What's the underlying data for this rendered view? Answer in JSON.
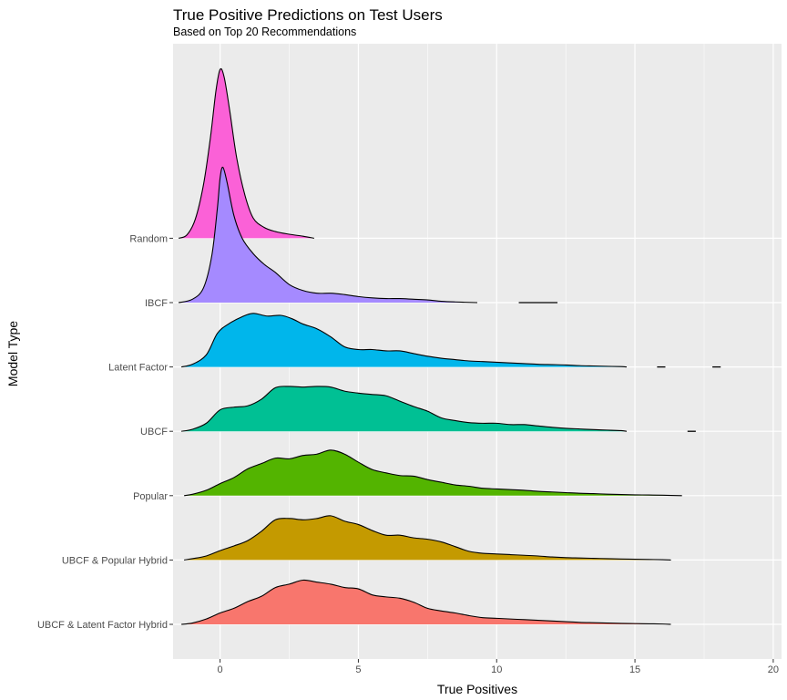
{
  "chart_data": {
    "type": "ridgeline",
    "title": "True Positive Predictions on Test Users",
    "subtitle": "Based on Top 20 Recommendations",
    "xlabel": "True Positives",
    "ylabel": "Model Type",
    "xlim": [
      -1.7,
      20.3
    ],
    "x_ticks": [
      0,
      5,
      10,
      15,
      20
    ],
    "grid": true,
    "colors": {
      "panel": "#ebebeb",
      "grid_major": "#ffffff",
      "outline": "#000000",
      "tick_text": "#4d4d4d"
    },
    "series": [
      {
        "name": "UBCF & Latent Factor Hybrid",
        "color": "#f8766d",
        "density": [
          [
            -1.4,
            0
          ],
          [
            -1,
            0.02
          ],
          [
            -0.5,
            0.08
          ],
          [
            0,
            0.17
          ],
          [
            0.5,
            0.24
          ],
          [
            1,
            0.34
          ],
          [
            1.5,
            0.42
          ],
          [
            2,
            0.55
          ],
          [
            2.5,
            0.6
          ],
          [
            3,
            0.66
          ],
          [
            3.5,
            0.63
          ],
          [
            4,
            0.6
          ],
          [
            4.5,
            0.55
          ],
          [
            5,
            0.53
          ],
          [
            5.5,
            0.44
          ],
          [
            6,
            0.41
          ],
          [
            6.5,
            0.39
          ],
          [
            7,
            0.33
          ],
          [
            7.5,
            0.24
          ],
          [
            8,
            0.2
          ],
          [
            8.5,
            0.17
          ],
          [
            9,
            0.13
          ],
          [
            9.5,
            0.1
          ],
          [
            10,
            0.09
          ],
          [
            10.5,
            0.08
          ],
          [
            11,
            0.07
          ],
          [
            11.5,
            0.06
          ],
          [
            12,
            0.05
          ],
          [
            12.5,
            0.04
          ],
          [
            13,
            0.03
          ],
          [
            13.5,
            0.025
          ],
          [
            14,
            0.02
          ],
          [
            14.5,
            0.015
          ],
          [
            15,
            0.012
          ],
          [
            15.5,
            0.008
          ],
          [
            16,
            0.005
          ],
          [
            16.3,
            0
          ]
        ]
      },
      {
        "name": "UBCF & Popular Hybrid",
        "color": "#c49a00",
        "density": [
          [
            -1.3,
            0
          ],
          [
            -1,
            0.02
          ],
          [
            -0.5,
            0.06
          ],
          [
            0,
            0.14
          ],
          [
            0.5,
            0.21
          ],
          [
            1,
            0.29
          ],
          [
            1.5,
            0.43
          ],
          [
            2,
            0.6
          ],
          [
            2.5,
            0.62
          ],
          [
            3,
            0.6
          ],
          [
            3.5,
            0.62
          ],
          [
            4,
            0.66
          ],
          [
            4.5,
            0.58
          ],
          [
            5,
            0.53
          ],
          [
            5.5,
            0.44
          ],
          [
            6,
            0.37
          ],
          [
            6.5,
            0.37
          ],
          [
            7,
            0.33
          ],
          [
            7.5,
            0.31
          ],
          [
            8,
            0.27
          ],
          [
            8.5,
            0.2
          ],
          [
            9,
            0.13
          ],
          [
            9.5,
            0.1
          ],
          [
            10,
            0.09
          ],
          [
            10.5,
            0.08
          ],
          [
            11,
            0.07
          ],
          [
            11.5,
            0.06
          ],
          [
            12,
            0.045
          ],
          [
            12.5,
            0.035
          ],
          [
            13,
            0.03
          ],
          [
            13.5,
            0.025
          ],
          [
            14,
            0.02
          ],
          [
            14.5,
            0.015
          ],
          [
            15,
            0.012
          ],
          [
            15.5,
            0.008
          ],
          [
            16,
            0.005
          ],
          [
            16.3,
            0
          ]
        ]
      },
      {
        "name": "Popular",
        "color": "#53b400",
        "density": [
          [
            -1.3,
            0
          ],
          [
            -1,
            0.02
          ],
          [
            -0.5,
            0.08
          ],
          [
            0,
            0.18
          ],
          [
            0.5,
            0.27
          ],
          [
            1,
            0.4
          ],
          [
            1.5,
            0.48
          ],
          [
            2,
            0.56
          ],
          [
            2.5,
            0.55
          ],
          [
            3,
            0.6
          ],
          [
            3.5,
            0.62
          ],
          [
            4,
            0.68
          ],
          [
            4.5,
            0.62
          ],
          [
            5,
            0.5
          ],
          [
            5.5,
            0.39
          ],
          [
            6,
            0.34
          ],
          [
            6.5,
            0.3
          ],
          [
            7,
            0.29
          ],
          [
            7.5,
            0.24
          ],
          [
            8,
            0.2
          ],
          [
            8.5,
            0.16
          ],
          [
            9,
            0.14
          ],
          [
            9.5,
            0.11
          ],
          [
            10,
            0.1
          ],
          [
            10.5,
            0.09
          ],
          [
            11,
            0.08
          ],
          [
            11.5,
            0.065
          ],
          [
            12,
            0.055
          ],
          [
            12.5,
            0.045
          ],
          [
            13,
            0.035
          ],
          [
            13.5,
            0.03
          ],
          [
            14,
            0.022
          ],
          [
            14.5,
            0.017
          ],
          [
            15,
            0.012
          ],
          [
            15.5,
            0.01
          ],
          [
            16,
            0.006
          ],
          [
            16.7,
            0
          ]
        ]
      },
      {
        "name": "UBCF",
        "color": "#00c094",
        "density": [
          [
            -1.4,
            0
          ],
          [
            -1,
            0.03
          ],
          [
            -0.5,
            0.12
          ],
          [
            0,
            0.32
          ],
          [
            0.5,
            0.36
          ],
          [
            1,
            0.38
          ],
          [
            1.5,
            0.48
          ],
          [
            2,
            0.65
          ],
          [
            2.5,
            0.67
          ],
          [
            3,
            0.66
          ],
          [
            3.5,
            0.67
          ],
          [
            4,
            0.66
          ],
          [
            4.5,
            0.6
          ],
          [
            5,
            0.57
          ],
          [
            5.5,
            0.55
          ],
          [
            6,
            0.53
          ],
          [
            6.5,
            0.45
          ],
          [
            7,
            0.37
          ],
          [
            7.5,
            0.3
          ],
          [
            8,
            0.2
          ],
          [
            8.5,
            0.16
          ],
          [
            9,
            0.13
          ],
          [
            9.5,
            0.12
          ],
          [
            10,
            0.12
          ],
          [
            10.5,
            0.1
          ],
          [
            11,
            0.1
          ],
          [
            11.5,
            0.08
          ],
          [
            12,
            0.06
          ],
          [
            12.5,
            0.045
          ],
          [
            13,
            0.035
          ],
          [
            13.5,
            0.025
          ],
          [
            14,
            0.018
          ],
          [
            14.5,
            0.01
          ],
          [
            14.7,
            0
          ]
        ]
      },
      {
        "name": "Latent Factor",
        "color": "#00b6eb",
        "density": [
          [
            -1.4,
            0
          ],
          [
            -1,
            0.04
          ],
          [
            -0.5,
            0.18
          ],
          [
            -0.1,
            0.5
          ],
          [
            0.3,
            0.64
          ],
          [
            0.8,
            0.75
          ],
          [
            1.2,
            0.8
          ],
          [
            1.7,
            0.76
          ],
          [
            2.2,
            0.77
          ],
          [
            2.6,
            0.72
          ],
          [
            3,
            0.64
          ],
          [
            3.5,
            0.57
          ],
          [
            4,
            0.45
          ],
          [
            4.5,
            0.3
          ],
          [
            5,
            0.26
          ],
          [
            5.5,
            0.26
          ],
          [
            6,
            0.24
          ],
          [
            6.5,
            0.24
          ],
          [
            7,
            0.2
          ],
          [
            7.5,
            0.16
          ],
          [
            8,
            0.13
          ],
          [
            8.5,
            0.11
          ],
          [
            9,
            0.09
          ],
          [
            9.5,
            0.08
          ],
          [
            10,
            0.07
          ],
          [
            10.5,
            0.06
          ],
          [
            11,
            0.05
          ],
          [
            11.5,
            0.04
          ],
          [
            12,
            0.035
          ],
          [
            12.5,
            0.03
          ],
          [
            13,
            0.02
          ],
          [
            13.5,
            0.015
          ],
          [
            14,
            0.01
          ],
          [
            14.5,
            0.005
          ],
          [
            14.7,
            0
          ]
        ]
      },
      {
        "name": "IBCF",
        "color": "#a58aff",
        "density": [
          [
            -1.5,
            0
          ],
          [
            -1,
            0.05
          ],
          [
            -0.6,
            0.22
          ],
          [
            -0.3,
            0.7
          ],
          [
            -0.1,
            1.4
          ],
          [
            0,
            1.86
          ],
          [
            0.1,
            2.02
          ],
          [
            0.25,
            1.8
          ],
          [
            0.5,
            1.3
          ],
          [
            0.8,
            0.96
          ],
          [
            1.2,
            0.73
          ],
          [
            1.6,
            0.57
          ],
          [
            2,
            0.45
          ],
          [
            2.5,
            0.27
          ],
          [
            3,
            0.18
          ],
          [
            3.5,
            0.14
          ],
          [
            4,
            0.14
          ],
          [
            4.5,
            0.12
          ],
          [
            5,
            0.09
          ],
          [
            5.5,
            0.07
          ],
          [
            6,
            0.06
          ],
          [
            6.5,
            0.06
          ],
          [
            7,
            0.05
          ],
          [
            7.5,
            0.04
          ],
          [
            8,
            0.02
          ],
          [
            8.5,
            0.01
          ],
          [
            9.3,
            0
          ]
        ]
      },
      {
        "name": "Random",
        "color": "#fb61d7",
        "density": [
          [
            -1.5,
            0
          ],
          [
            -1.2,
            0.05
          ],
          [
            -0.9,
            0.28
          ],
          [
            -0.6,
            0.8
          ],
          [
            -0.35,
            1.5
          ],
          [
            -0.15,
            2.2
          ],
          [
            0,
            2.52
          ],
          [
            0.15,
            2.4
          ],
          [
            0.35,
            1.9
          ],
          [
            0.6,
            1.2
          ],
          [
            0.9,
            0.64
          ],
          [
            1.2,
            0.3
          ],
          [
            1.6,
            0.16
          ],
          [
            2,
            0.1
          ],
          [
            2.5,
            0.06
          ],
          [
            3,
            0.03
          ],
          [
            3.4,
            0
          ]
        ]
      }
    ],
    "outlier_segments": [
      {
        "series": "IBCF",
        "from": 10.8,
        "to": 12.2
      },
      {
        "series": "Latent Factor",
        "from": 15.8,
        "to": 16.1
      },
      {
        "series": "Latent Factor",
        "from": 17.8,
        "to": 18.1
      },
      {
        "series": "UBCF",
        "from": 16.9,
        "to": 17.2
      }
    ]
  }
}
